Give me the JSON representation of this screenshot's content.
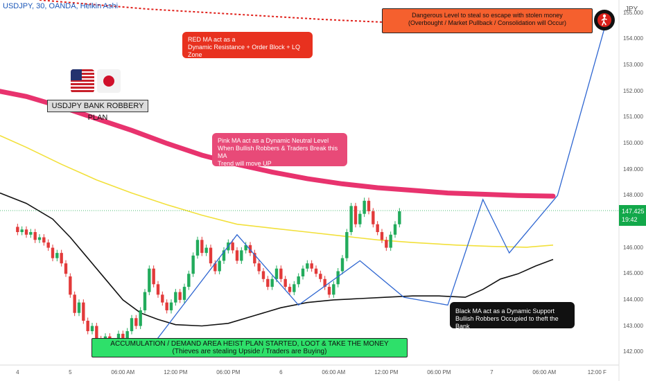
{
  "header": "USDJPY, 30, OANDA, Heikin Ashi",
  "currency": "JPY",
  "price_tag": {
    "price": "147.425",
    "countdown": "19:42",
    "color": "#12a84a"
  },
  "title_box": "USDJPY BANK ROBBERY PLAN",
  "annotations": {
    "red": [
      "RED MA act as a",
      "Dynamic Resistance + Order Block + LQ Zone"
    ],
    "orange": [
      "Dangerous Level to steal so escape with stolen money",
      "(Overbought / Market Pullback / Consolidation will Occur)"
    ],
    "pink": [
      "Pink MA act as a Dynamic Neutral Level",
      "When Bullish Robbers & Traders Break this MA",
      "Trend will move UP"
    ],
    "black": [
      "Black MA act as a Dynamic Support",
      "Bullish Robbers Occupied to theft the Bank"
    ],
    "green": [
      "ACCUMULATION / DEMAND AREA HEIST PLAN STARTED, LOOT & TAKE THE MONEY",
      "(Thieves are stealing Upside / Traders are Buying)"
    ]
  },
  "colors": {
    "up": "#22ab5c",
    "down": "#e23a3a",
    "red_ma": "#e0201a",
    "pink_ma": "#e8336e",
    "yellow_ma": "#f2e03a",
    "black_ma": "#111111",
    "zigzag": "#2e66d1"
  },
  "chart_data": {
    "type": "candlestick",
    "y_ticks": [
      142.0,
      143.0,
      144.0,
      145.0,
      146.0,
      147.0,
      148.0,
      149.0,
      150.0,
      151.0,
      152.0,
      153.0,
      154.0,
      155.0
    ],
    "ylim": [
      141.5,
      155.5
    ],
    "x_labels": [
      "4",
      "5",
      "06:00 AM",
      "12:00 PM",
      "06:00 PM",
      "6",
      "06:00 AM",
      "12:00 PM",
      "06:00 PM",
      "7",
      "06:00 AM",
      "12:00 F"
    ],
    "x_label_index": [
      0,
      12,
      24,
      36,
      48,
      60,
      72,
      84,
      96,
      108,
      120,
      132
    ],
    "x_range": [
      -4,
      137
    ],
    "current_price": 147.425,
    "red_ma": [
      [
        5,
        155.5
      ],
      [
        30,
        155.15
      ],
      [
        50,
        154.95
      ],
      [
        70,
        154.75
      ],
      [
        90,
        154.6
      ],
      [
        110,
        154.45
      ],
      [
        123,
        154.4
      ]
    ],
    "pink_ma": [
      [
        -4,
        152.0
      ],
      [
        2,
        151.8
      ],
      [
        10,
        151.4
      ],
      [
        18,
        150.95
      ],
      [
        26,
        150.5
      ],
      [
        34,
        150.0
      ],
      [
        42,
        149.55
      ],
      [
        50,
        149.2
      ],
      [
        58,
        148.9
      ],
      [
        66,
        148.65
      ],
      [
        74,
        148.45
      ],
      [
        82,
        148.3
      ],
      [
        90,
        148.2
      ],
      [
        98,
        148.1
      ],
      [
        106,
        148.05
      ],
      [
        114,
        148.0
      ],
      [
        122,
        147.98
      ]
    ],
    "yellow_ma": [
      [
        -4,
        150.3
      ],
      [
        2,
        149.85
      ],
      [
        10,
        149.2
      ],
      [
        18,
        148.6
      ],
      [
        26,
        148.1
      ],
      [
        34,
        147.65
      ],
      [
        42,
        147.25
      ],
      [
        50,
        146.9
      ],
      [
        58,
        146.75
      ],
      [
        66,
        146.6
      ],
      [
        74,
        146.45
      ],
      [
        82,
        146.3
      ],
      [
        90,
        146.2
      ],
      [
        100,
        146.1
      ],
      [
        108,
        146.05
      ],
      [
        116,
        146.02
      ],
      [
        122,
        146.1
      ]
    ],
    "black_ma": [
      [
        -4,
        148.1
      ],
      [
        2,
        147.7
      ],
      [
        8,
        147.1
      ],
      [
        12,
        146.4
      ],
      [
        16,
        145.6
      ],
      [
        20,
        144.8
      ],
      [
        24,
        144.0
      ],
      [
        28,
        143.5
      ],
      [
        32,
        143.25
      ],
      [
        36,
        143.05
      ],
      [
        42,
        143.0
      ],
      [
        48,
        143.1
      ],
      [
        54,
        143.4
      ],
      [
        60,
        143.7
      ],
      [
        66,
        143.9
      ],
      [
        72,
        144.0
      ],
      [
        78,
        144.05
      ],
      [
        84,
        144.1
      ],
      [
        90,
        144.15
      ],
      [
        96,
        144.15
      ],
      [
        102,
        144.1
      ],
      [
        106,
        144.4
      ],
      [
        110,
        144.8
      ],
      [
        114,
        145.0
      ],
      [
        118,
        145.3
      ],
      [
        122,
        145.55
      ]
    ],
    "zigzag": [
      [
        30,
        142.1
      ],
      [
        50,
        146.5
      ],
      [
        64,
        143.8
      ],
      [
        78,
        145.5
      ],
      [
        88,
        144.1
      ],
      [
        98,
        143.8
      ],
      [
        106,
        147.85
      ],
      [
        112,
        145.8
      ],
      [
        123,
        148.0
      ],
      [
        134,
        154.6
      ]
    ],
    "candles": [
      [
        146.8,
        146.6
      ],
      [
        146.6,
        146.7
      ],
      [
        146.7,
        146.5
      ],
      [
        146.5,
        146.6
      ],
      [
        146.6,
        146.3
      ],
      [
        146.3,
        146.4
      ],
      [
        146.4,
        146.2
      ],
      [
        146.2,
        146.0
      ],
      [
        146.0,
        145.6
      ],
      [
        145.6,
        145.8
      ],
      [
        145.8,
        145.4
      ],
      [
        145.4,
        145.0
      ],
      [
        144.9,
        144.2
      ],
      [
        144.2,
        143.5
      ],
      [
        143.5,
        143.9
      ],
      [
        143.9,
        143.2
      ],
      [
        143.2,
        142.8
      ],
      [
        142.8,
        143.0
      ],
      [
        143.0,
        142.5
      ],
      [
        142.5,
        142.2
      ],
      [
        142.2,
        142.6
      ],
      [
        142.6,
        142.1
      ],
      [
        142.1,
        142.4
      ],
      [
        142.4,
        142.7
      ],
      [
        142.7,
        142.4
      ],
      [
        142.4,
        142.8
      ],
      [
        142.8,
        143.3
      ],
      [
        143.3,
        143.0
      ],
      [
        143.0,
        143.6
      ],
      [
        143.6,
        144.3
      ],
      [
        144.3,
        145.2
      ],
      [
        145.2,
        144.6
      ],
      [
        144.6,
        144.2
      ],
      [
        144.2,
        143.9
      ],
      [
        143.9,
        143.6
      ],
      [
        143.6,
        143.9
      ],
      [
        143.9,
        144.3
      ],
      [
        144.3,
        144.0
      ],
      [
        144.0,
        144.5
      ],
      [
        144.5,
        145.0
      ],
      [
        145.0,
        145.7
      ],
      [
        145.7,
        146.3
      ],
      [
        146.3,
        145.8
      ],
      [
        145.8,
        146.0
      ],
      [
        146.0,
        145.4
      ],
      [
        145.4,
        145.1
      ],
      [
        145.1,
        145.5
      ],
      [
        145.5,
        145.9
      ],
      [
        145.9,
        146.2
      ],
      [
        146.2,
        145.9
      ],
      [
        145.9,
        145.5
      ],
      [
        145.5,
        145.9
      ],
      [
        145.9,
        146.1
      ],
      [
        146.1,
        145.8
      ],
      [
        145.8,
        145.4
      ],
      [
        145.4,
        145.1
      ],
      [
        145.1,
        144.8
      ],
      [
        144.8,
        144.5
      ],
      [
        144.5,
        144.8
      ],
      [
        144.8,
        145.2
      ],
      [
        145.2,
        144.8
      ],
      [
        144.8,
        144.5
      ],
      [
        144.5,
        144.3
      ],
      [
        144.3,
        144.6
      ],
      [
        144.6,
        144.9
      ],
      [
        144.9,
        145.2
      ],
      [
        145.2,
        145.4
      ],
      [
        145.4,
        145.2
      ],
      [
        145.2,
        145.0
      ],
      [
        145.0,
        144.8
      ],
      [
        144.8,
        144.5
      ],
      [
        144.5,
        144.2
      ],
      [
        144.2,
        144.6
      ],
      [
        144.6,
        145.1
      ],
      [
        145.1,
        145.6
      ],
      [
        145.6,
        146.6
      ],
      [
        146.6,
        147.6
      ],
      [
        147.6,
        146.9
      ],
      [
        146.9,
        147.3
      ],
      [
        147.3,
        147.8
      ],
      [
        147.8,
        147.4
      ],
      [
        147.4,
        146.9
      ],
      [
        146.9,
        146.6
      ],
      [
        146.6,
        146.3
      ],
      [
        146.3,
        146.0
      ],
      [
        146.0,
        146.5
      ],
      [
        146.5,
        146.9
      ],
      [
        146.9,
        147.4
      ]
    ]
  }
}
